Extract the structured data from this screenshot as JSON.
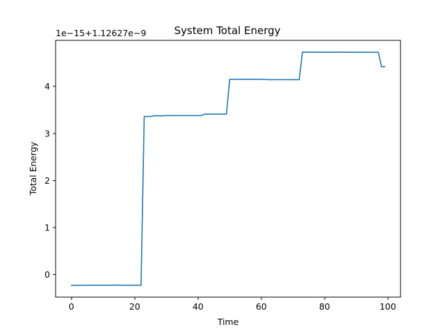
{
  "chart_data": {
    "type": "line",
    "title": "System Total Energy",
    "xlabel": "Time",
    "ylabel": "Total Energy",
    "offset_label": "1e−15+1.12627e−9",
    "xlim": [
      -5,
      104
    ],
    "ylim": [
      -0.48,
      4.98
    ],
    "xticks": [
      0,
      20,
      40,
      60,
      80,
      100
    ],
    "xtick_labels": [
      "0",
      "20",
      "40",
      "60",
      "80",
      "100"
    ],
    "yticks": [
      0,
      1,
      2,
      3,
      4
    ],
    "ytick_labels": [
      "0",
      "1",
      "2",
      "3",
      "4"
    ],
    "grid": false,
    "legend": "none",
    "line_color": "#1f77b4",
    "x": [
      0,
      1,
      2,
      3,
      4,
      5,
      6,
      7,
      8,
      9,
      10,
      11,
      12,
      13,
      14,
      15,
      16,
      17,
      18,
      19,
      20,
      21,
      22,
      23,
      24,
      25,
      26,
      27,
      28,
      29,
      30,
      31,
      32,
      33,
      34,
      35,
      36,
      37,
      38,
      39,
      40,
      41,
      42,
      43,
      44,
      45,
      46,
      47,
      48,
      49,
      50,
      51,
      52,
      53,
      54,
      55,
      56,
      57,
      58,
      59,
      60,
      61,
      62,
      63,
      64,
      65,
      66,
      67,
      68,
      69,
      70,
      71,
      72,
      73,
      74,
      75,
      76,
      77,
      78,
      79,
      80,
      81,
      82,
      83,
      84,
      85,
      86,
      87,
      88,
      89,
      90,
      91,
      92,
      93,
      94,
      95,
      96,
      97,
      98,
      99
    ],
    "y": [
      -0.23,
      -0.23,
      -0.23,
      -0.23,
      -0.23,
      -0.228,
      -0.228,
      -0.228,
      -0.228,
      -0.228,
      -0.228,
      -0.228,
      -0.228,
      -0.225,
      -0.225,
      -0.228,
      -0.228,
      -0.228,
      -0.228,
      -0.228,
      -0.228,
      -0.23,
      -0.23,
      3.36,
      3.36,
      3.36,
      3.375,
      3.375,
      3.375,
      3.375,
      3.38,
      3.38,
      3.38,
      3.38,
      3.38,
      3.38,
      3.38,
      3.38,
      3.38,
      3.38,
      3.38,
      3.38,
      3.41,
      3.41,
      3.41,
      3.41,
      3.41,
      3.41,
      3.41,
      3.41,
      4.15,
      4.15,
      4.15,
      4.15,
      4.15,
      4.15,
      4.15,
      4.15,
      4.15,
      4.15,
      4.15,
      4.15,
      4.145,
      4.145,
      4.145,
      4.145,
      4.145,
      4.145,
      4.145,
      4.145,
      4.145,
      4.145,
      4.145,
      4.73,
      4.73,
      4.73,
      4.73,
      4.73,
      4.728,
      4.728,
      4.728,
      4.728,
      4.728,
      4.728,
      4.728,
      4.728,
      4.728,
      4.728,
      4.728,
      4.726,
      4.726,
      4.726,
      4.726,
      4.726,
      4.726,
      4.726,
      4.726,
      4.726,
      4.42,
      4.42
    ]
  }
}
